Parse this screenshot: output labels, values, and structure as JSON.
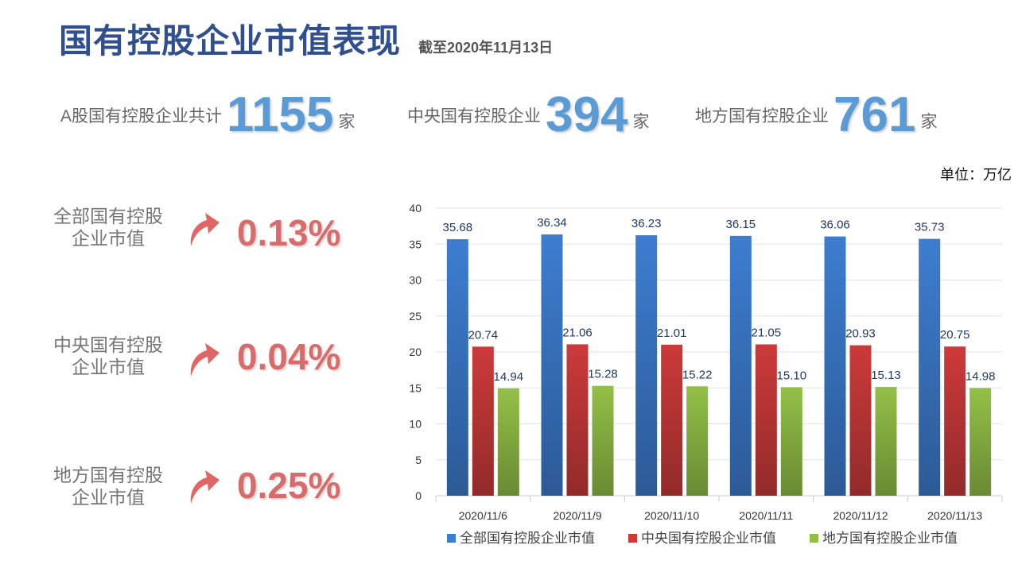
{
  "header": {
    "title": "国有控股企业市值表现",
    "subtitle": "截至2020年11月13日"
  },
  "stats": [
    {
      "label": "A股国有控股企业共计",
      "value": "1155",
      "unit": "家"
    },
    {
      "label": "中央国有控股企业",
      "value": "394",
      "unit": "家"
    },
    {
      "label": "地方国有控股企业",
      "value": "761",
      "unit": "家"
    }
  ],
  "unit_note": "单位：万亿",
  "growth": [
    {
      "label_line1": "全部国有控股",
      "label_line2": "企业市值",
      "value": "0.13%",
      "direction": "up"
    },
    {
      "label_line1": "中央国有控股",
      "label_line2": "企业市值",
      "value": "0.04%",
      "direction": "up"
    },
    {
      "label_line1": "地方国有控股",
      "label_line2": "企业市值",
      "value": "0.25%",
      "direction": "up"
    }
  ],
  "colors": {
    "title": "#2f4f8f",
    "stat_number": "#5b9bd5",
    "growth": "#d96b6b",
    "arrow": "#e06666"
  },
  "chart_data": {
    "type": "bar",
    "categories": [
      "2020/11/6",
      "2020/11/9",
      "2020/11/10",
      "2020/11/11",
      "2020/11/12",
      "2020/11/13"
    ],
    "series": [
      {
        "name": "全部国有控股企业市值",
        "color": "#3d7dd0",
        "values": [
          35.68,
          36.34,
          36.23,
          36.15,
          36.06,
          35.73
        ],
        "labels": [
          "35.68",
          "36.34",
          "36.23",
          "36.15",
          "36.06",
          "35.73"
        ]
      },
      {
        "name": "中央国有控股企业市值",
        "color": "#cc3a3a",
        "values": [
          20.74,
          21.06,
          21.01,
          21.05,
          20.93,
          20.75
        ],
        "labels": [
          "20.74",
          "21.06",
          "21.01",
          "21.05",
          "20.93",
          "20.75"
        ]
      },
      {
        "name": "地方国有控股企业市值",
        "color": "#92c047",
        "values": [
          14.94,
          15.28,
          15.22,
          15.1,
          15.13,
          14.98
        ],
        "labels": [
          "14.94",
          "15.28",
          "15.22",
          "15.10",
          "15.13",
          "14.98"
        ]
      }
    ],
    "ylim": [
      0,
      40
    ],
    "yticks": [
      "0",
      "5",
      "10",
      "15",
      "20",
      "25",
      "30",
      "35",
      "40"
    ],
    "grid": true,
    "legend_position": "bottom"
  }
}
